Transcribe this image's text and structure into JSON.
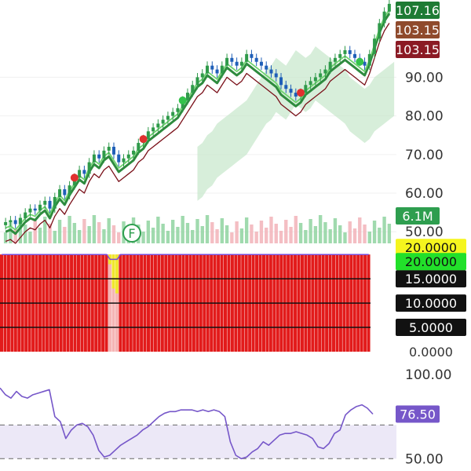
{
  "chart_data": [
    {
      "type": "candlestick",
      "panel": "price",
      "y_ticks": [
        "90.00",
        "80.00",
        "70.00",
        "60.00",
        "50.00"
      ],
      "ylim": [
        47,
        110
      ],
      "badges": [
        {
          "text": "107.16",
          "color": "#1e7b34"
        },
        {
          "text": "103.15",
          "color": "#8f4a2c"
        },
        {
          "text": "103.15",
          "color": "#8b1a24"
        },
        {
          "text": "6.1M",
          "color": "#2e9e4f"
        }
      ],
      "marker": "F",
      "closes": [
        52.5,
        53,
        52,
        53.5,
        55,
        56,
        55.5,
        57,
        58,
        56,
        59,
        61,
        59.5,
        62,
        64,
        66,
        65,
        68,
        70,
        69,
        71,
        72,
        70,
        68,
        69,
        70,
        71,
        73,
        74,
        76,
        77,
        78,
        79,
        80,
        81,
        82,
        84,
        86,
        88,
        90,
        91,
        93,
        92,
        91,
        93,
        95,
        94,
        93,
        94,
        96,
        95,
        94,
        93,
        92,
        91,
        90,
        88,
        87,
        86,
        85,
        86,
        88,
        89,
        90,
        91,
        92,
        94,
        95,
        96,
        97,
        96,
        95,
        94,
        93,
        96,
        100,
        104,
        107,
        109
      ]
    },
    {
      "type": "bar",
      "panel": "indicator",
      "y_ticks": [
        "20.0000",
        "15.0000",
        "10.0000",
        "5.0000",
        "0.0000"
      ],
      "top_tick": "20.0000",
      "current_value": "20.0000",
      "ylim": [
        0,
        21
      ],
      "values": [
        20,
        20,
        20,
        20,
        20,
        20,
        20,
        20,
        20,
        20,
        20,
        20,
        20,
        20,
        20,
        20,
        20,
        20,
        20,
        20,
        20,
        20,
        20,
        20,
        20,
        20,
        20,
        20,
        20,
        20,
        20,
        18,
        13,
        12,
        20,
        20,
        20,
        20,
        20,
        20,
        20,
        20,
        20,
        20,
        20,
        20,
        20,
        20,
        20,
        20,
        20,
        20,
        20,
        20,
        20,
        20,
        20,
        20,
        20,
        20,
        20,
        20,
        20,
        20,
        20,
        20,
        20,
        20,
        20,
        20,
        20,
        20,
        20,
        20,
        20,
        20,
        20,
        20,
        20,
        20,
        20,
        20,
        20,
        20,
        20,
        20,
        20,
        20,
        20,
        20,
        20,
        20,
        20,
        20,
        20,
        20,
        20,
        20,
        20,
        20,
        20,
        20,
        20,
        20,
        20,
        20
      ]
    },
    {
      "type": "line",
      "panel": "oscillator",
      "y_ticks": [
        "100.00",
        "50.00"
      ],
      "current_value": "76.50",
      "ylim": [
        45,
        108
      ],
      "bands": [
        70,
        50
      ],
      "values": [
        92,
        88,
        86,
        90,
        87,
        86,
        88,
        89,
        90,
        91,
        75,
        72,
        62,
        67,
        70,
        71,
        69,
        64,
        55,
        51,
        52,
        55,
        58,
        60,
        62,
        64,
        67,
        69,
        72,
        75,
        77,
        78,
        78,
        79,
        79,
        79,
        78,
        79,
        78,
        79,
        78,
        75,
        60,
        52,
        50,
        51,
        54,
        56,
        60,
        58,
        61,
        64,
        65,
        65,
        66,
        65,
        64,
        62,
        57,
        56,
        59,
        65,
        67,
        76,
        79,
        81,
        82,
        80,
        76.5
      ]
    }
  ]
}
